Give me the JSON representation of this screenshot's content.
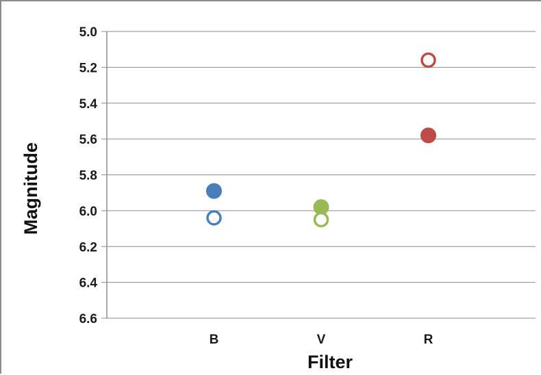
{
  "chart_data": {
    "type": "scatter",
    "title": "",
    "xlabel": "Filter",
    "ylabel": "Magnitude",
    "categories": [
      "B",
      "V",
      "R"
    ],
    "ylim": [
      5.0,
      6.6
    ],
    "y_inverted": true,
    "yticks": [
      "5.0",
      "5.2",
      "5.4",
      "5.6",
      "5.8",
      "6.0",
      "6.2",
      "6.4",
      "6.6"
    ],
    "grid": "horizontal",
    "legend": "none",
    "points": [
      {
        "category": "B",
        "y": 5.89,
        "style": "filled",
        "color": "#4a7ebb"
      },
      {
        "category": "B",
        "y": 6.04,
        "style": "open",
        "color": "#4a7ebb"
      },
      {
        "category": "V",
        "y": 5.98,
        "style": "filled",
        "color": "#98b954"
      },
      {
        "category": "V",
        "y": 6.05,
        "style": "open",
        "color": "#98b954"
      },
      {
        "category": "R",
        "y": 5.58,
        "style": "filled",
        "color": "#be4b48"
      },
      {
        "category": "R",
        "y": 5.16,
        "style": "open",
        "color": "#be4b48"
      }
    ]
  }
}
